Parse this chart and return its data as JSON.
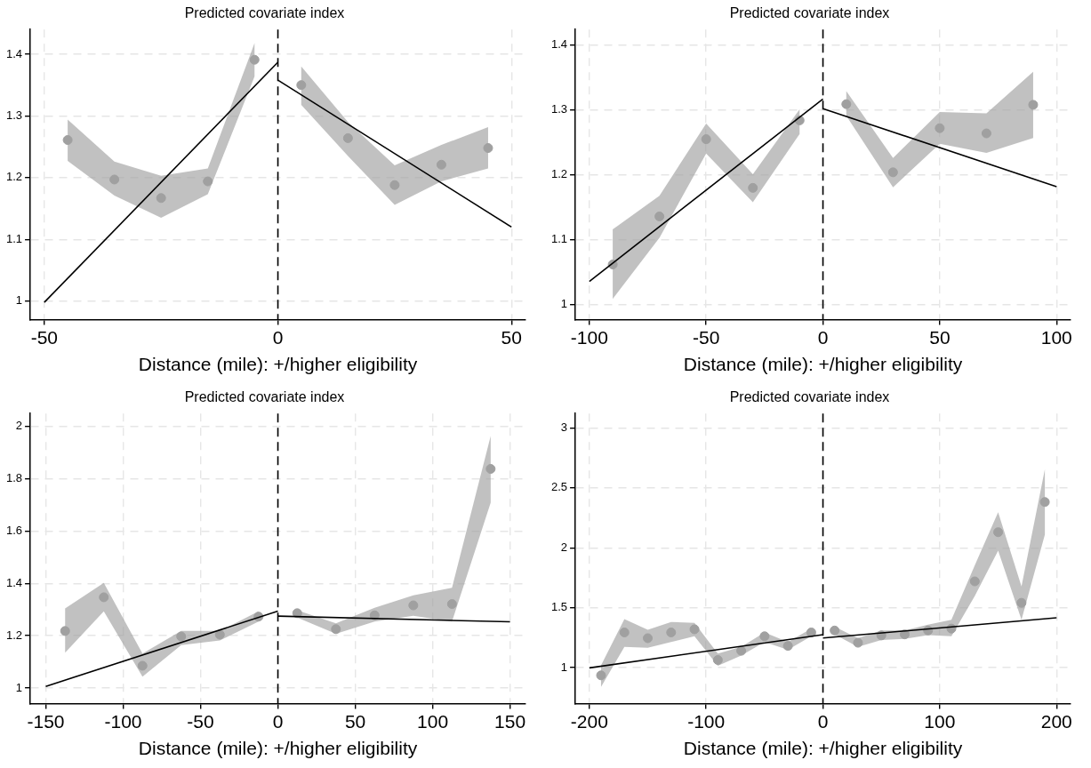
{
  "chart_data": [
    {
      "type": "scatter",
      "title": "Predicted covariate index",
      "xlabel": "Distance (mile): +/higher eligibility",
      "xlim": [
        -53,
        53
      ],
      "xticks": [
        -50,
        0,
        50
      ],
      "ylim": [
        0.97,
        1.44
      ],
      "yticks": [
        1,
        1.1,
        1.2,
        1.3,
        1.4
      ],
      "grid": true,
      "legend": false,
      "ref_lines": [
        {
          "axis": "x",
          "value": 0,
          "color": "#000000",
          "line_style": "dashed"
        }
      ],
      "series": [
        {
          "color": "#a0a0a0",
          "marker": "circle",
          "x": [
            -45,
            -35,
            -25,
            -15,
            -5
          ],
          "values": [
            1.261,
            1.197,
            1.167,
            1.194,
            1.391
          ],
          "lower": [
            1.227,
            1.171,
            1.135,
            1.173,
            1.364
          ],
          "upper": [
            1.294,
            1.226,
            1.203,
            1.215,
            1.418
          ]
        },
        {
          "color": "#a0a0a0",
          "marker": "circle",
          "x": [
            5,
            15,
            25,
            35,
            45
          ],
          "values": [
            1.35,
            1.264,
            1.188,
            1.221,
            1.248
          ],
          "lower": [
            1.318,
            1.235,
            1.156,
            1.194,
            1.215
          ],
          "upper": [
            1.38,
            1.29,
            1.22,
            1.253,
            1.282
          ]
        },
        {
          "type": "line",
          "color": "#000000",
          "marker": "none",
          "x": [
            -50,
            0
          ],
          "values": [
            0.998,
            1.387
          ]
        },
        {
          "type": "line",
          "color": "#000000",
          "marker": "none",
          "x": [
            0,
            50
          ],
          "values": [
            1.358,
            1.12
          ]
        }
      ]
    },
    {
      "type": "scatter",
      "title": "Predicted covariate index",
      "xlabel": "Distance (mile): +/higher eligibility",
      "xlim": [
        -106,
        106
      ],
      "xticks": [
        -100,
        -50,
        0,
        50,
        100
      ],
      "ylim": [
        0.977,
        1.424
      ],
      "yticks": [
        1,
        1.1,
        1.2,
        1.3,
        1.4
      ],
      "grid": true,
      "legend": false,
      "ref_lines": [
        {
          "axis": "x",
          "value": 0,
          "color": "#000000",
          "line_style": "dashed"
        }
      ],
      "series": [
        {
          "color": "#a0a0a0",
          "marker": "circle",
          "x": [
            -90,
            -70,
            -50,
            -30,
            -10
          ],
          "values": [
            1.062,
            1.136,
            1.255,
            1.18,
            1.284
          ],
          "lower": [
            1.009,
            1.103,
            1.233,
            1.158,
            1.263
          ],
          "upper": [
            1.116,
            1.168,
            1.279,
            1.201,
            1.301
          ]
        },
        {
          "color": "#a0a0a0",
          "marker": "circle",
          "x": [
            10,
            30,
            50,
            70,
            90
          ],
          "values": [
            1.309,
            1.204,
            1.272,
            1.264,
            1.308
          ],
          "lower": [
            1.291,
            1.181,
            1.248,
            1.234,
            1.257
          ],
          "upper": [
            1.329,
            1.226,
            1.297,
            1.295,
            1.359
          ]
        },
        {
          "type": "line",
          "color": "#000000",
          "marker": "none",
          "x": [
            -100,
            0
          ],
          "values": [
            1.036,
            1.317
          ]
        },
        {
          "type": "line",
          "color": "#000000",
          "marker": "none",
          "x": [
            0,
            100
          ],
          "values": [
            1.302,
            1.182
          ]
        }
      ]
    },
    {
      "type": "scatter",
      "title": "Predicted covariate index",
      "xlabel": "Distance (mile): +/higher eligibility",
      "xlim": [
        -160,
        160
      ],
      "xticks": [
        -150,
        -100,
        -50,
        0,
        50,
        100,
        150
      ],
      "ylim": [
        0.94,
        2.05
      ],
      "yticks": [
        1,
        1.2,
        1.4,
        1.6,
        1.8,
        2
      ],
      "grid": true,
      "legend": false,
      "ref_lines": [
        {
          "axis": "x",
          "value": 0,
          "color": "#000000",
          "line_style": "dashed"
        }
      ],
      "series": [
        {
          "color": "#a0a0a0",
          "marker": "circle",
          "x": [
            -137.5,
            -112.5,
            -87.5,
            -62.5,
            -37.5,
            -12.5
          ],
          "values": [
            1.218,
            1.347,
            1.085,
            1.197,
            1.204,
            1.273
          ],
          "lower": [
            1.135,
            1.293,
            1.043,
            1.164,
            1.182,
            1.254
          ],
          "upper": [
            1.304,
            1.402,
            1.132,
            1.218,
            1.218,
            1.293
          ]
        },
        {
          "color": "#a0a0a0",
          "marker": "circle",
          "x": [
            12.5,
            37.5,
            62.5,
            87.5,
            112.5,
            137.5
          ],
          "values": [
            1.286,
            1.225,
            1.278,
            1.316,
            1.321,
            1.838
          ],
          "lower": [
            1.269,
            1.207,
            1.254,
            1.276,
            1.254,
            1.709
          ],
          "upper": [
            1.297,
            1.247,
            1.307,
            1.354,
            1.383,
            1.964
          ]
        },
        {
          "type": "line",
          "color": "#000000",
          "marker": "none",
          "x": [
            -150,
            0
          ],
          "values": [
            1.006,
            1.294
          ]
        },
        {
          "type": "line",
          "color": "#000000",
          "marker": "none",
          "x": [
            0,
            150
          ],
          "values": [
            1.275,
            1.253
          ]
        }
      ]
    },
    {
      "type": "scatter",
      "title": "Predicted covariate index",
      "xlabel": "Distance (mile): +/higher eligibility",
      "xlim": [
        -212,
        212
      ],
      "xticks": [
        -200,
        -100,
        0,
        100,
        200
      ],
      "ylim": [
        0.7,
        3.12
      ],
      "yticks": [
        1,
        1.5,
        2,
        2.5,
        3
      ],
      "grid": true,
      "legend": false,
      "ref_lines": [
        {
          "axis": "x",
          "value": 0,
          "color": "#000000",
          "line_style": "dashed"
        }
      ],
      "series": [
        {
          "color": "#a0a0a0",
          "marker": "circle",
          "x": [
            -190,
            -170,
            -150,
            -130,
            -110,
            -90,
            -70,
            -50,
            -30,
            -10
          ],
          "values": [
            0.936,
            1.294,
            1.246,
            1.294,
            1.32,
            1.064,
            1.141,
            1.262,
            1.182,
            1.294
          ],
          "lower": [
            0.84,
            1.173,
            1.166,
            1.214,
            1.262,
            1.016,
            1.102,
            1.214,
            1.15,
            1.262
          ],
          "upper": [
            1.02,
            1.406,
            1.317,
            1.381,
            1.374,
            1.118,
            1.173,
            1.294,
            1.214,
            1.326
          ]
        },
        {
          "color": "#a0a0a0",
          "marker": "circle",
          "x": [
            10,
            30,
            50,
            70,
            90,
            110,
            130,
            150,
            170,
            190
          ],
          "values": [
            1.31,
            1.208,
            1.269,
            1.278,
            1.31,
            1.326,
            1.72,
            2.13,
            1.541,
            2.382
          ],
          "lower": [
            1.278,
            1.173,
            1.23,
            1.24,
            1.272,
            1.262,
            1.598,
            1.976,
            1.4,
            2.11
          ],
          "upper": [
            1.342,
            1.246,
            1.31,
            1.31,
            1.358,
            1.4,
            1.854,
            2.296,
            1.678,
            2.654
          ]
        },
        {
          "type": "line",
          "color": "#000000",
          "marker": "none",
          "x": [
            -200,
            0
          ],
          "values": [
            0.998,
            1.275
          ]
        },
        {
          "type": "line",
          "color": "#000000",
          "marker": "none",
          "x": [
            0,
            200
          ],
          "values": [
            1.247,
            1.416
          ]
        }
      ]
    }
  ]
}
